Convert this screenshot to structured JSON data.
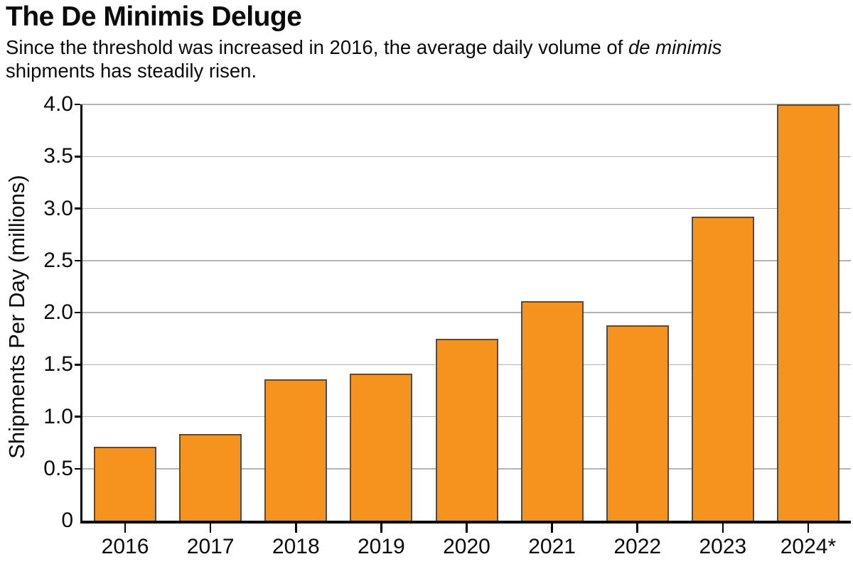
{
  "header": {
    "title": "The De Minimis Deluge",
    "subtitle_prefix": "Since the threshold was increased in 2016, the average daily volume of ",
    "subtitle_italic": "de minimis",
    "subtitle_suffix": " shipments has steadily risen."
  },
  "chart_data": {
    "type": "bar",
    "title": "The De Minimis Deluge",
    "subtitle": "Since the threshold was increased in 2016, the average daily volume of de minimis shipments has steadily risen.",
    "categories": [
      "2016",
      "2017",
      "2018",
      "2019",
      "2020",
      "2021",
      "2022",
      "2023",
      "2024*"
    ],
    "values": [
      0.71,
      0.83,
      1.36,
      1.41,
      1.75,
      2.11,
      1.88,
      2.92,
      4.0
    ],
    "xlabel": "",
    "ylabel": "Shipments Per Day (millions)",
    "ylim": [
      0,
      4.0
    ],
    "yticks": [
      "0",
      "0.5",
      "1.0",
      "1.5",
      "2.0",
      "2.5",
      "3.0",
      "3.5",
      "4.0"
    ],
    "grid": "horizontal",
    "legend": "none",
    "bar_color": "#F6921E",
    "bar_border_color": "#4D4D4D",
    "gridline_color": "#B3B3B3",
    "axis_color": "#000000"
  }
}
